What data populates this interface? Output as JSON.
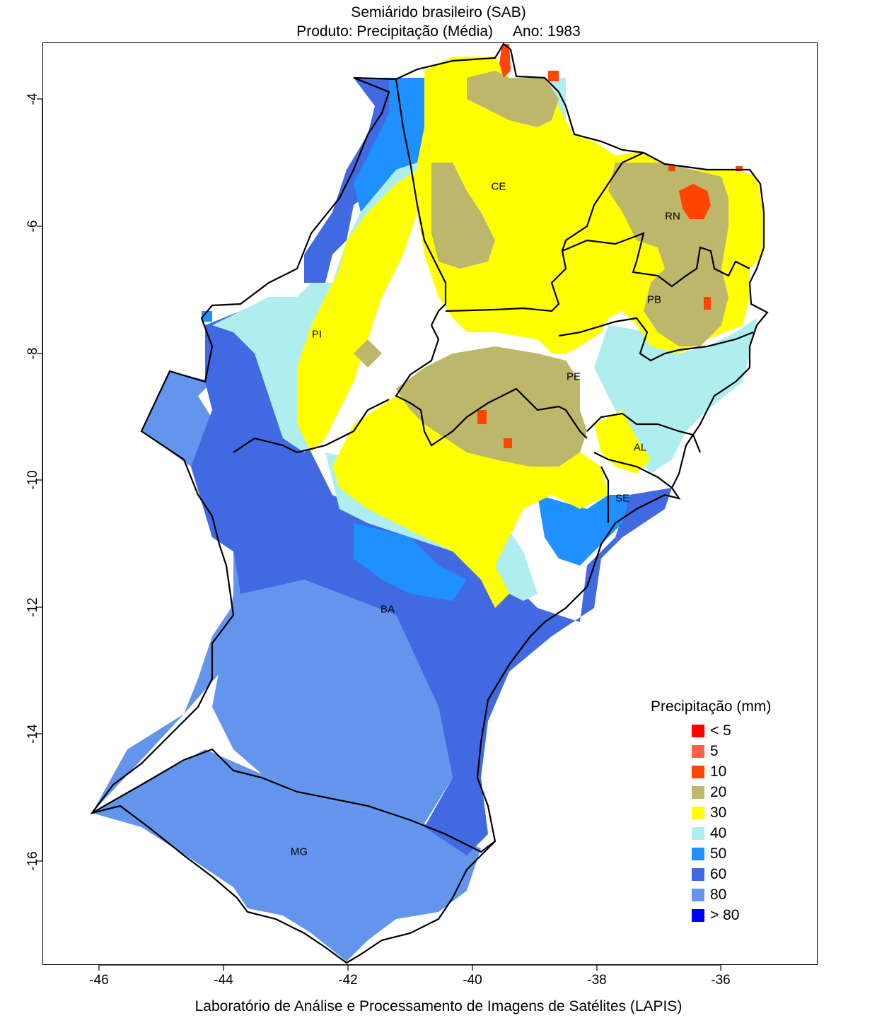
{
  "title_line1": "Semiárido brasileiro (SAB)",
  "title_product": "Produto: Precipitação (Média)",
  "title_year": "Ano:  1983",
  "footer": "Laboratório de Análise e Processamento de Imagens de Satélites (LAPIS)",
  "axes": {
    "x_ticks": [
      "-46",
      "-44",
      "-42",
      "-40",
      "-38",
      "-36"
    ],
    "y_ticks": [
      "-4",
      "-6",
      "-8",
      "-10",
      "-12",
      "-14",
      "-16"
    ]
  },
  "states": [
    "CE",
    "RN",
    "PB",
    "PI",
    "PE",
    "AL",
    "SE",
    "BA",
    "MG"
  ],
  "legend": {
    "title": "Precipitação (mm)",
    "items": [
      {
        "label": "< 5",
        "color": "#ff0000"
      },
      {
        "label": "5",
        "color": "#ff6347"
      },
      {
        "label": "10",
        "color": "#ff4500"
      },
      {
        "label": "20",
        "color": "#bdb76b"
      },
      {
        "label": "30",
        "color": "#ffff00"
      },
      {
        "label": "40",
        "color": "#afeeee"
      },
      {
        "label": "50",
        "color": "#1e90ff"
      },
      {
        "label": "60",
        "color": "#4169e1"
      },
      {
        "label": "80",
        "color": "#6495ed"
      },
      {
        "label": "> 80",
        "color": "#0000ff"
      }
    ]
  }
}
